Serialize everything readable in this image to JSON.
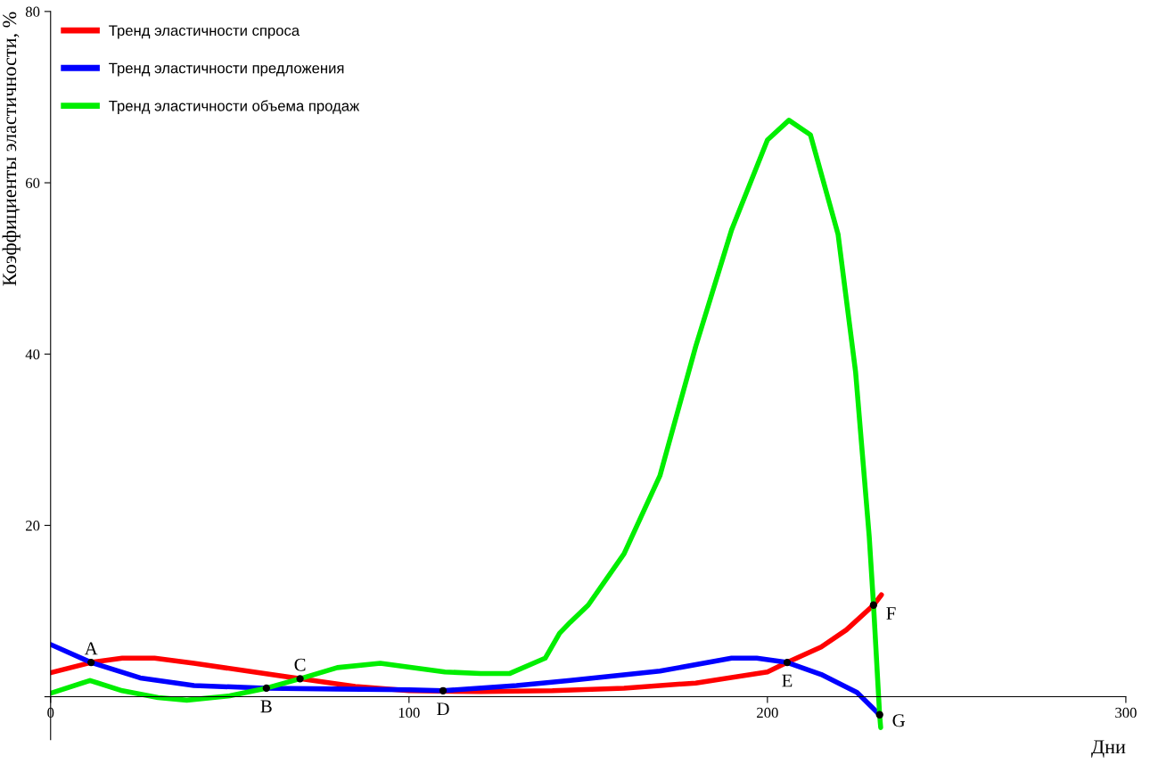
{
  "chart_data": {
    "type": "line",
    "xlabel": "Дни",
    "ylabel": "Коэффициенты эластичности, %",
    "xlim": [
      0,
      300
    ],
    "ylim": [
      -5,
      80
    ],
    "xticks": [
      0,
      100,
      200,
      300
    ],
    "yticks": [
      {
        "value": 0,
        "label": null
      },
      20,
      40,
      60,
      80
    ],
    "grid": false,
    "legend": "top left",
    "marker": "none",
    "line_style": "solid",
    "series": [
      {
        "name": "Тренд эластичности спроса",
        "color": "#ff0000",
        "x": [
          0,
          11.3,
          20,
          29,
          40,
          55,
          69.6,
          85,
          100,
          120,
          140,
          160,
          180,
          200,
          205.5,
          215,
          222,
          229.6,
          231.8
        ],
        "values": [
          2.8,
          4.0,
          4.5,
          4.5,
          3.9,
          3.0,
          2.1,
          1.2,
          0.7,
          0.6,
          0.7,
          1.0,
          1.6,
          2.9,
          4.0,
          5.8,
          7.8,
          10.7,
          11.9
        ]
      },
      {
        "name": "Тренд эластичности предложения",
        "color": "#0000ff",
        "x": [
          0,
          11.3,
          25,
          40,
          60.2,
          80,
          100,
          109.5,
          130,
          145,
          170,
          190,
          197,
          205.5,
          215,
          225,
          231.3
        ],
        "values": [
          6.1,
          4.0,
          2.2,
          1.3,
          1.0,
          0.9,
          0.8,
          0.7,
          1.3,
          1.9,
          3.0,
          4.5,
          4.5,
          4.0,
          2.6,
          0.5,
          -2.1
        ]
      },
      {
        "name": "Тренд эластичности объема продаж",
        "color": "#00ee00",
        "x": [
          0,
          11,
          20,
          30,
          38,
          50,
          60.2,
          69.6,
          80,
          92,
          110,
          120,
          128,
          138,
          142,
          145,
          150,
          160,
          170,
          180,
          190,
          200,
          206,
          212,
          219.7,
          224.6,
          228.4,
          229.6,
          231.3,
          231.6
        ],
        "values": [
          0.4,
          1.9,
          0.7,
          -0.1,
          -0.4,
          0.1,
          1.0,
          2.1,
          3.4,
          3.9,
          2.9,
          2.7,
          2.7,
          4.5,
          7.4,
          8.7,
          10.7,
          16.7,
          25.8,
          40.9,
          54.5,
          65,
          67.3,
          65.6,
          54,
          37.9,
          18.7,
          10.7,
          -2.1,
          -3.6
        ]
      }
    ],
    "annotations": [
      {
        "text": "A",
        "x": 11.3,
        "y": 4.0
      },
      {
        "text": "B",
        "x": 60.2,
        "y": 1.0
      },
      {
        "text": "C",
        "x": 69.6,
        "y": 2.1
      },
      {
        "text": "D",
        "x": 109.5,
        "y": 0.7
      },
      {
        "text": "E",
        "x": 205.5,
        "y": 4.0
      },
      {
        "text": "F",
        "x": 229.6,
        "y": 10.7
      },
      {
        "text": "G",
        "x": 231.3,
        "y": -2.1
      }
    ]
  }
}
